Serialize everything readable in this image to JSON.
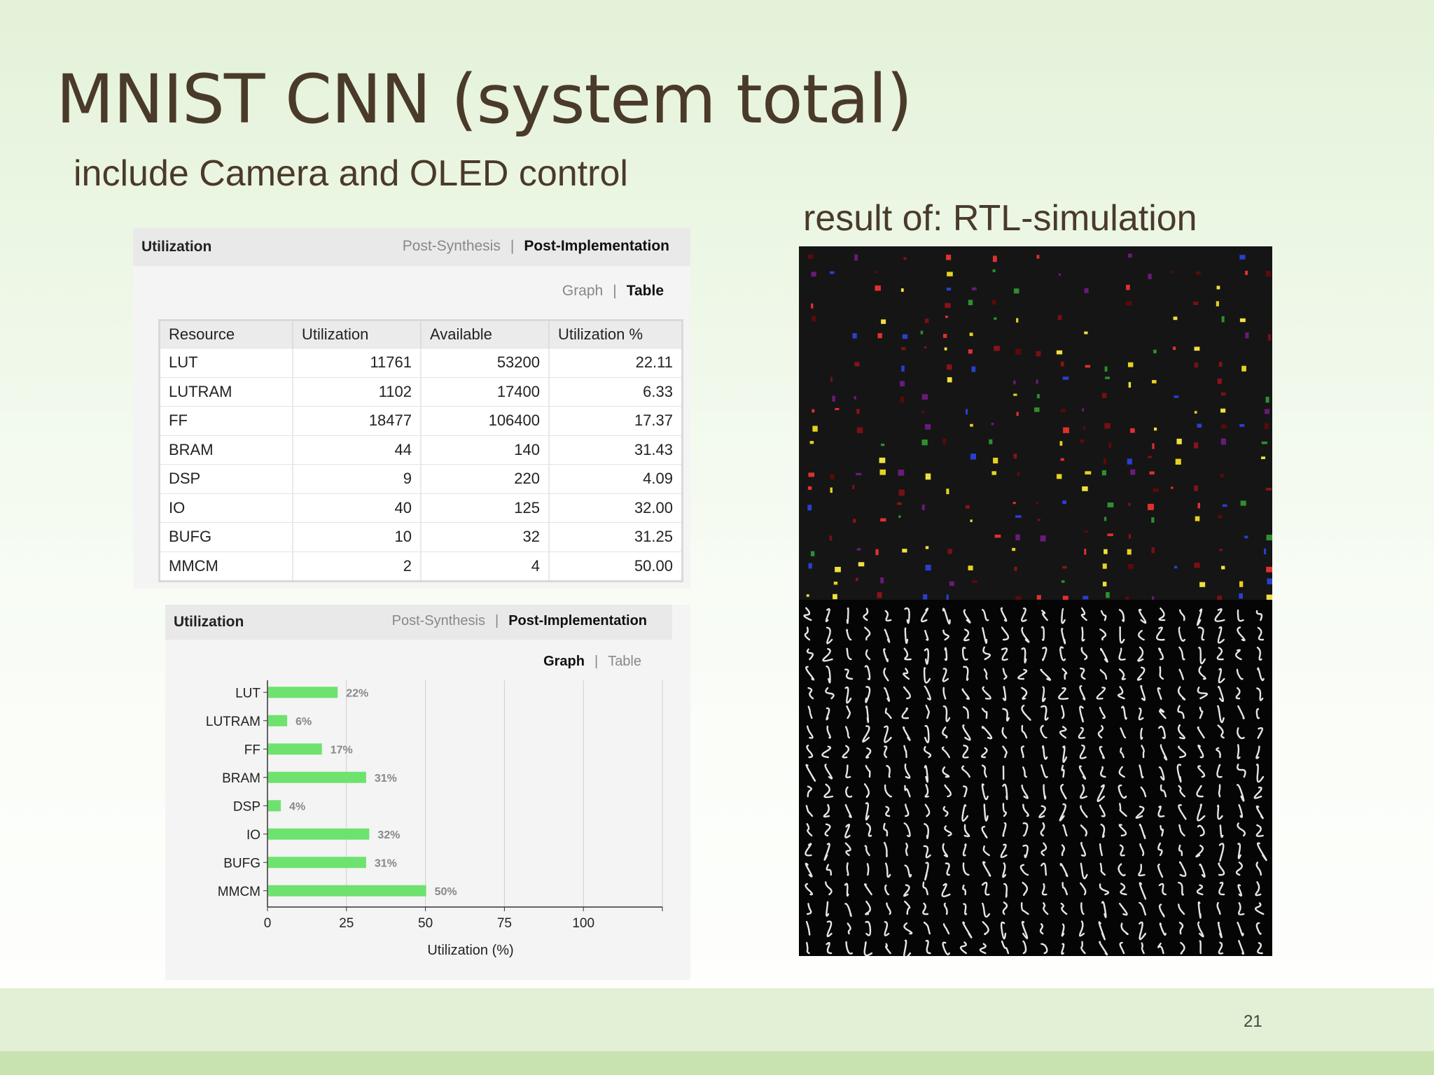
{
  "slide": {
    "title": "MNIST CNN (system total)",
    "subtitle": "include Camera and OLED control",
    "result_caption": "result of: RTL-simulation",
    "page_number": "21"
  },
  "table_panel": {
    "title": "Utilization",
    "tabs": [
      "Post-Synthesis",
      "Post-Implementation"
    ],
    "active_tab": "Post-Implementation",
    "views": [
      "Graph",
      "Table"
    ],
    "active_view": "Table",
    "columns": [
      "Resource",
      "Utilization",
      "Available",
      "Utilization %"
    ],
    "rows": [
      [
        "LUT",
        "11761",
        "53200",
        "22.11"
      ],
      [
        "LUTRAM",
        "1102",
        "17400",
        "6.33"
      ],
      [
        "FF",
        "18477",
        "106400",
        "17.37"
      ],
      [
        "BRAM",
        "44",
        "140",
        "31.43"
      ],
      [
        "DSP",
        "9",
        "220",
        "4.09"
      ],
      [
        "IO",
        "40",
        "125",
        "32.00"
      ],
      [
        "BUFG",
        "10",
        "32",
        "31.25"
      ],
      [
        "MMCM",
        "2",
        "4",
        "50.00"
      ]
    ]
  },
  "graph_panel": {
    "title": "Utilization",
    "tabs": [
      "Post-Synthesis",
      "Post-Implementation"
    ],
    "active_tab": "Post-Implementation",
    "views": [
      "Graph",
      "Table"
    ],
    "active_view": "Graph"
  },
  "chart_data": {
    "type": "bar",
    "orientation": "horizontal",
    "categories": [
      "LUT",
      "LUTRAM",
      "FF",
      "BRAM",
      "DSP",
      "IO",
      "BUFG",
      "MMCM"
    ],
    "values": [
      22,
      6,
      17,
      31,
      4,
      32,
      31,
      50
    ],
    "data_labels": [
      "22%",
      "6%",
      "17%",
      "31%",
      "4%",
      "32%",
      "31%",
      "50%"
    ],
    "xlabel": "Utilization (%)",
    "ylabel": "",
    "xlim": [
      0,
      125
    ],
    "xticks": [
      0,
      25,
      50,
      75,
      100
    ],
    "grid": true,
    "bar_color": "#6ee26e"
  }
}
